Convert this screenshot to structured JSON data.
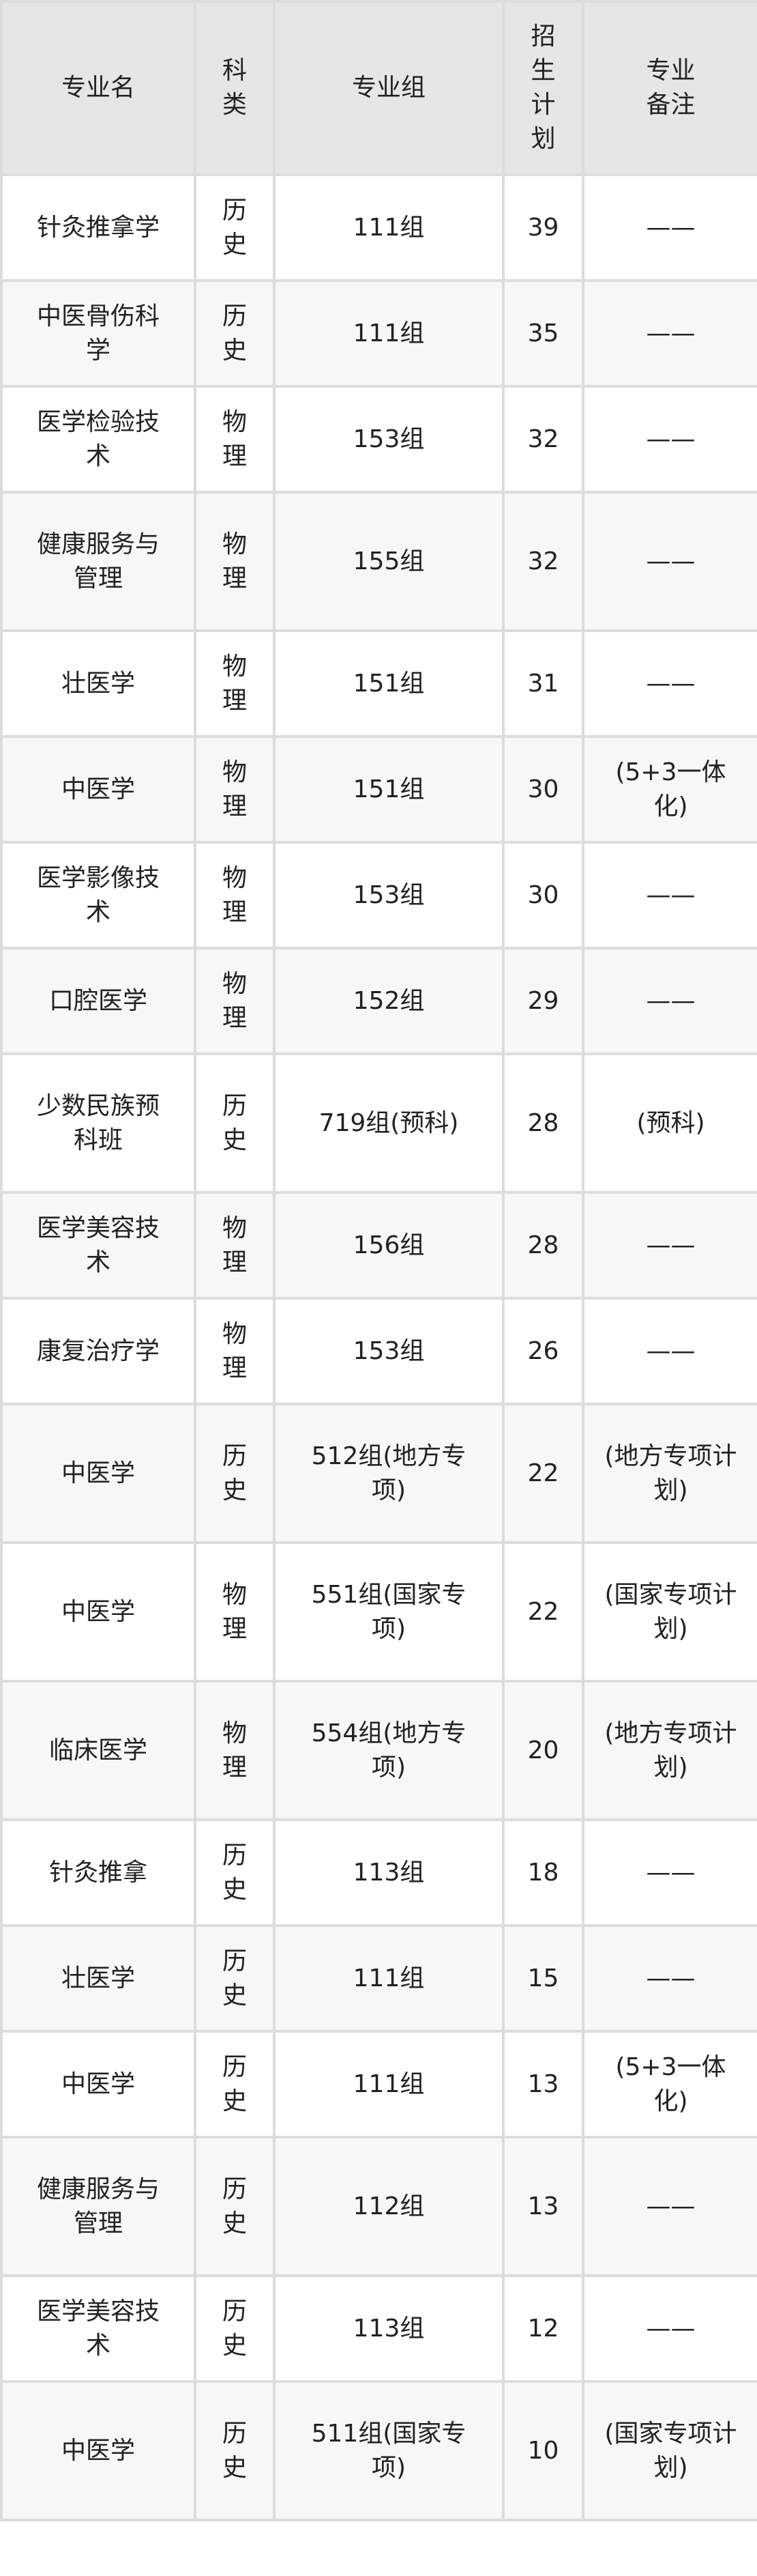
{
  "headers": [
    "专业名",
    "科类",
    "专业组",
    "招生计划",
    "专业备注"
  ],
  "rows": [
    [
      "针灸推拿学",
      "历史",
      "111组",
      "39",
      "——"
    ],
    [
      "中医骨伤科学",
      "历史",
      "111组",
      "35",
      "——"
    ],
    [
      "医学检验技术",
      "物理",
      "153组",
      "32",
      "——"
    ],
    [
      "健康服务与管理",
      "物理",
      "155组",
      "32",
      "——"
    ],
    [
      "壮医学",
      "物理",
      "151组",
      "31",
      "——"
    ],
    [
      "中医学",
      "物理",
      "151组",
      "30",
      "(5+3一体化)"
    ],
    [
      "医学影像技术",
      "物理",
      "153组",
      "30",
      "——"
    ],
    [
      "口腔医学",
      "物理",
      "152组",
      "29",
      "——"
    ],
    [
      "少数民族预科班",
      "历史",
      "719组(预科)",
      "28",
      "(预科)"
    ],
    [
      "医学美容技术",
      "物理",
      "156组",
      "28",
      "——"
    ],
    [
      "康复治疗学",
      "物理",
      "153组",
      "26",
      "——"
    ],
    [
      "中医学",
      "历史",
      "512组(地方专项)",
      "22",
      "(地方专项计划)"
    ],
    [
      "中医学",
      "物理",
      "551组(国家专项)",
      "22",
      "(国家专项计划)"
    ],
    [
      "临床医学",
      "物理",
      "554组(地方专项)",
      "20",
      "(地方专项计划)"
    ],
    [
      "针灸推拿",
      "历史",
      "113组",
      "18",
      "——"
    ],
    [
      "壮医学",
      "历史",
      "111组",
      "15",
      "——"
    ],
    [
      "中医学",
      "历史",
      "111组",
      "13",
      "(5+3一体化)"
    ],
    [
      "健康服务与管理",
      "历史",
      "112组",
      "13",
      "——"
    ],
    [
      "医学美容技术",
      "历史",
      "113组",
      "12",
      "——"
    ],
    [
      "中医学",
      "历史",
      "511组(国家专项)",
      "10",
      "(国家专项计划)"
    ]
  ],
  "colors": {
    "header_bg": "#e6e6e6",
    "border": "#dcdcdc",
    "row_alt": "#f7f7f7"
  }
}
